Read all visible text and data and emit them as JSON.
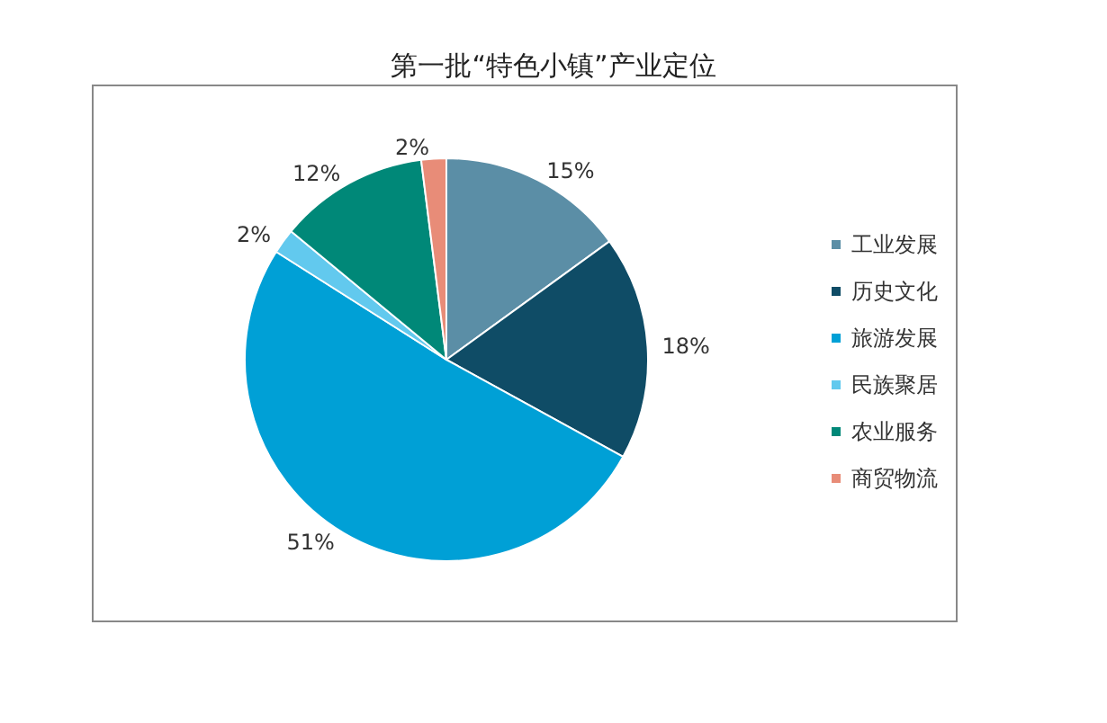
{
  "chart_data": {
    "type": "pie",
    "title": "第一批“特色小镇”产业定位",
    "categories": [
      "工业发展",
      "历史文化",
      "旅游发展",
      "民族聚居",
      "农业服务",
      "商贸物流"
    ],
    "values": [
      15,
      18,
      51,
      2,
      12,
      2
    ],
    "value_labels": [
      "15%",
      "18%",
      "51%",
      "2%",
      "12%",
      "2%"
    ],
    "colors": [
      "#5b8ea6",
      "#0f4c66",
      "#00a0d6",
      "#62c9ee",
      "#008878",
      "#e88c78"
    ],
    "legend": "right"
  }
}
